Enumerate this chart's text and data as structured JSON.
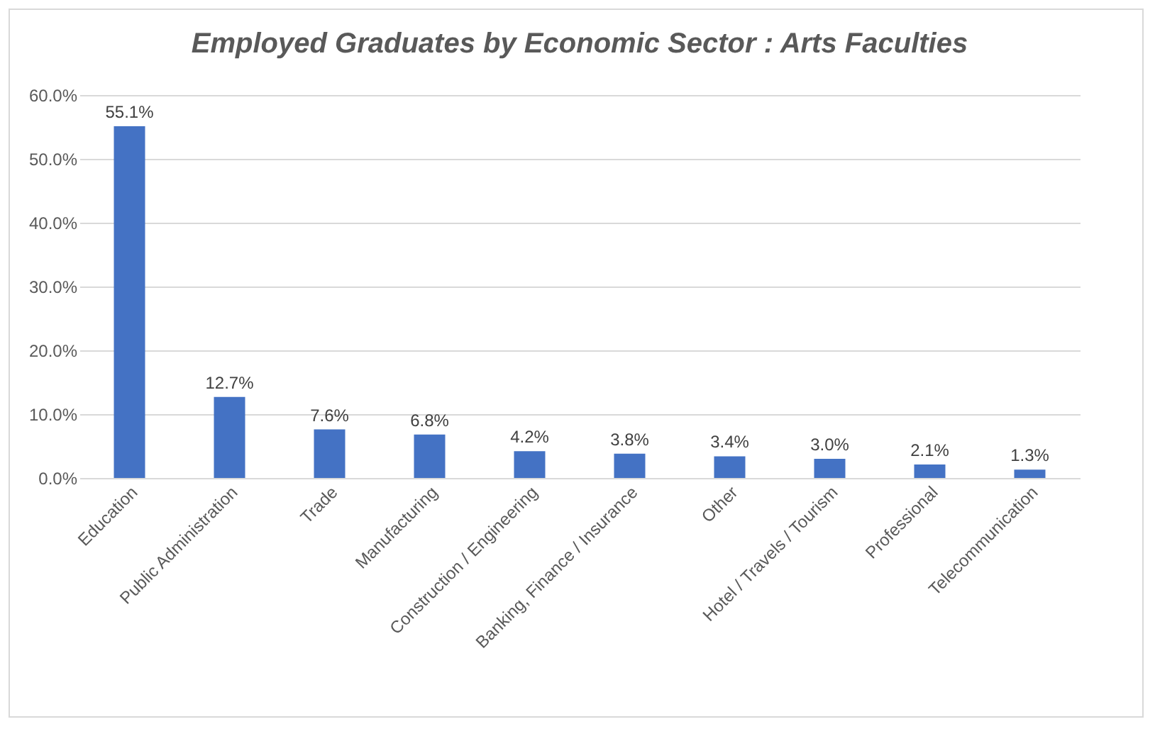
{
  "chart_data": {
    "type": "bar",
    "title": "Employed Graduates by Economic Sector : Arts Faculties",
    "categories": [
      "Education",
      "Public Administration",
      "Trade",
      "Manufacturing",
      "Construction / Engineering",
      "Banking, Finance / Insurance",
      "Other",
      "Hotel / Travels / Tourism",
      "Professional",
      "Telecommunication"
    ],
    "values": [
      55.1,
      12.7,
      7.6,
      6.8,
      4.2,
      3.8,
      3.4,
      3.0,
      2.1,
      1.3
    ],
    "value_labels": [
      "55.1%",
      "12.7%",
      "7.6%",
      "6.8%",
      "4.2%",
      "3.8%",
      "3.4%",
      "3.0%",
      "2.1%",
      "1.3%"
    ],
    "color": "#4472c4",
    "ylim": [
      0,
      60
    ],
    "yticks": [
      {
        "value": 0,
        "label": "0.0%"
      },
      {
        "value": 10,
        "label": "10.0%"
      },
      {
        "value": 20,
        "label": "20.0%"
      },
      {
        "value": 30,
        "label": "30.0%"
      },
      {
        "value": 40,
        "label": "40.0%"
      },
      {
        "value": 50,
        "label": "50.0%"
      },
      {
        "value": 60,
        "label": "60.0%"
      }
    ],
    "grid": "y"
  }
}
